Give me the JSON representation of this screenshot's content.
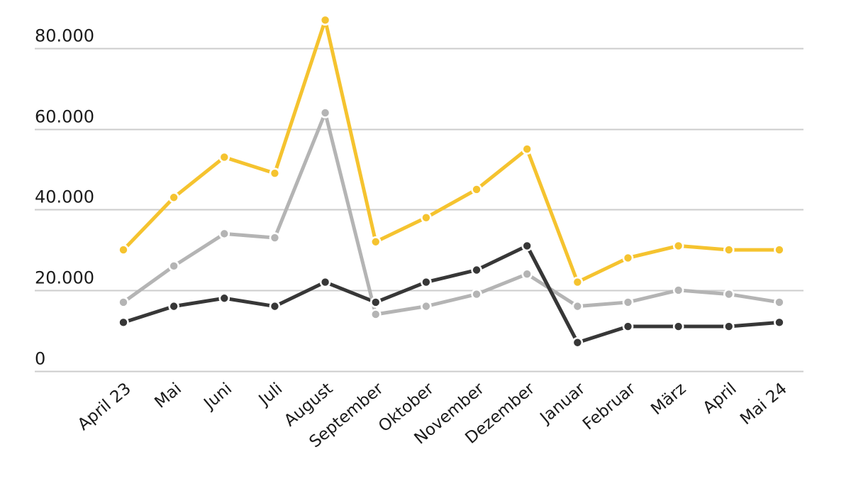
{
  "chart_data": {
    "type": "line",
    "categories": [
      "April 23",
      "Mai",
      "Juni",
      "Juli",
      "August",
      "September",
      "Oktober",
      "November",
      "Dezember",
      "Januar",
      "Februar",
      "März",
      "April",
      "Mai 24"
    ],
    "series": [
      {
        "name": "yellow",
        "color": "#F5C32F",
        "values": [
          30000,
          43000,
          53000,
          49000,
          87000,
          32000,
          38000,
          45000,
          55000,
          22000,
          28000,
          31000,
          30000,
          30000
        ]
      },
      {
        "name": "gray",
        "color": "#B4B4B4",
        "values": [
          17000,
          26000,
          34000,
          33000,
          64000,
          14000,
          16000,
          19000,
          24000,
          16000,
          17000,
          20000,
          19000,
          17000
        ]
      },
      {
        "name": "dark",
        "color": "#373737",
        "values": [
          12000,
          16000,
          18000,
          16000,
          22000,
          17000,
          22000,
          25000,
          31000,
          7000,
          11000,
          11000,
          11000,
          12000
        ]
      }
    ],
    "y_ticks": [
      {
        "value": 0,
        "label": "0"
      },
      {
        "value": 20000,
        "label": "20.000"
      },
      {
        "value": 40000,
        "label": "40.000"
      },
      {
        "value": 60000,
        "label": "60.000"
      },
      {
        "value": 80000,
        "label": "80.000"
      }
    ],
    "ylim": [
      0,
      90000
    ],
    "grid": "horizontal",
    "legend": "none",
    "background": "#FFFFFF",
    "gridline_color": "#CCCCCC",
    "label_color": "#1A1A1A"
  }
}
